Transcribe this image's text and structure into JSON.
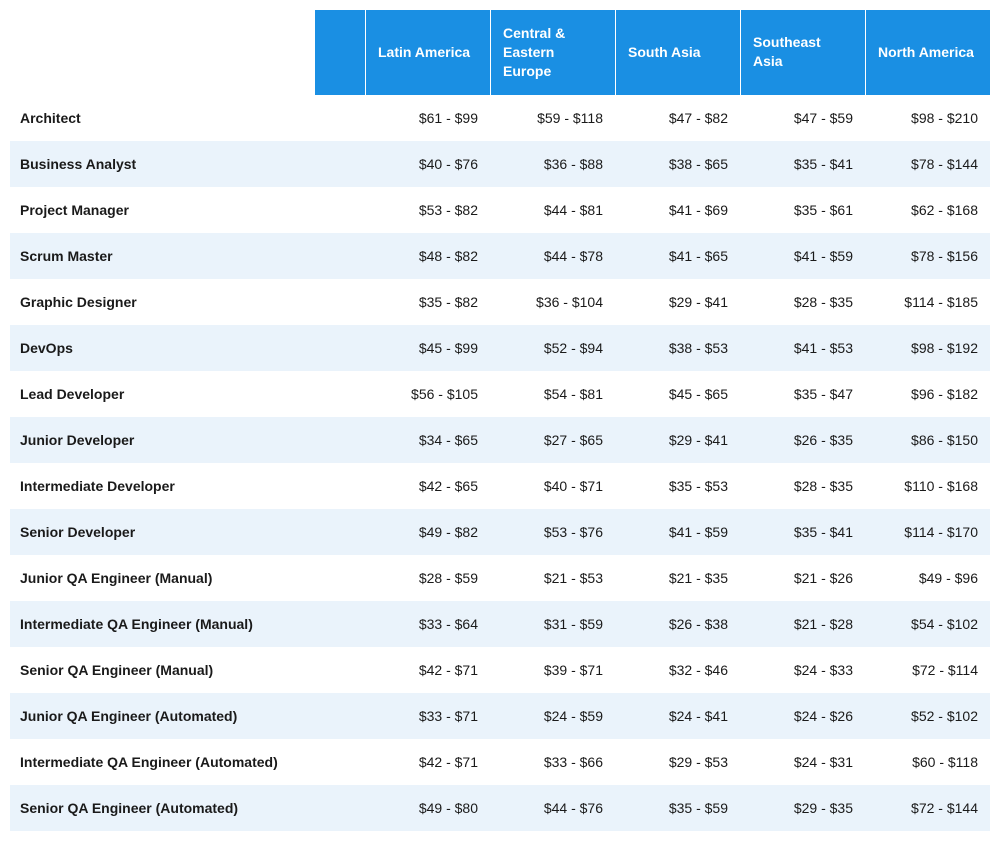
{
  "table": {
    "type": "table",
    "header_bg_color": "#1a8fe3",
    "header_text_color": "#ffffff",
    "row_odd_bg": "#ffffff",
    "row_even_bg": "#eaf3fb",
    "text_color": "#1a1a1a",
    "font_size_header": 14,
    "font_size_cell": 14,
    "role_font_weight": 700,
    "header_font_weight": 700,
    "column_widths": {
      "role": 355,
      "data": 125
    },
    "columns": [
      "Latin America",
      "Central & Eastern Europe",
      "South Asia",
      "Southeast Asia",
      "North America"
    ],
    "rows": [
      {
        "role": "Architect",
        "values": [
          "$61 - $99",
          "$59 - $118",
          "$47 - $82",
          "$47 - $59",
          "$98 - $210"
        ]
      },
      {
        "role": "Business Analyst",
        "values": [
          "$40 - $76",
          "$36 - $88",
          "$38 - $65",
          "$35 - $41",
          "$78 - $144"
        ]
      },
      {
        "role": "Project Manager",
        "values": [
          "$53 - $82",
          "$44 - $81",
          "$41 - $69",
          "$35 - $61",
          "$62 - $168"
        ]
      },
      {
        "role": "Scrum Master",
        "values": [
          "$48 - $82",
          "$44 - $78",
          "$41 - $65",
          "$41 - $59",
          "$78 - $156"
        ]
      },
      {
        "role": "Graphic Designer",
        "values": [
          "$35 - $82",
          "$36 - $104",
          "$29 - $41",
          "$28 - $35",
          "$114 - $185"
        ]
      },
      {
        "role": "DevOps",
        "values": [
          "$45 - $99",
          "$52 - $94",
          "$38 - $53",
          "$41 - $53",
          "$98 - $192"
        ]
      },
      {
        "role": "Lead Developer",
        "values": [
          "$56 - $105",
          "$54 - $81",
          "$45 - $65",
          "$35 - $47",
          "$96 - $182"
        ]
      },
      {
        "role": "Junior Developer",
        "values": [
          "$34 - $65",
          "$27 - $65",
          "$29 - $41",
          "$26 - $35",
          "$86 - $150"
        ]
      },
      {
        "role": "Intermediate Developer",
        "values": [
          "$42 - $65",
          "$40 - $71",
          "$35 - $53",
          "$28 - $35",
          "$110 - $168"
        ]
      },
      {
        "role": "Senior Developer",
        "values": [
          "$49 - $82",
          "$53 - $76",
          "$41 - $59",
          "$35 - $41",
          "$114 - $170"
        ]
      },
      {
        "role": "Junior QA Engineer (Manual)",
        "values": [
          "$28 - $59",
          "$21 - $53",
          "$21 - $35",
          "$21 - $26",
          "$49 - $96"
        ]
      },
      {
        "role": "Intermediate QA Engineer (Manual)",
        "values": [
          "$33 - $64",
          "$31 - $59",
          "$26 - $38",
          "$21 - $28",
          "$54 - $102"
        ]
      },
      {
        "role": "Senior QA Engineer (Manual)",
        "values": [
          "$42 - $71",
          "$39 - $71",
          "$32 - $46",
          "$24 - $33",
          "$72 - $114"
        ]
      },
      {
        "role": "Junior QA Engineer (Automated)",
        "values": [
          "$33 - $71",
          "$24 - $59",
          "$24 - $41",
          "$24 - $26",
          "$52 - $102"
        ]
      },
      {
        "role": "Intermediate QA Engineer (Automated)",
        "values": [
          "$42 - $71",
          "$33 - $66",
          "$29 - $53",
          "$24 - $31",
          "$60 - $118"
        ]
      },
      {
        "role": "Senior QA Engineer (Automated)",
        "values": [
          "$49 - $80",
          "$44 - $76",
          "$35 - $59",
          "$29 - $35",
          "$72 - $144"
        ]
      }
    ]
  }
}
